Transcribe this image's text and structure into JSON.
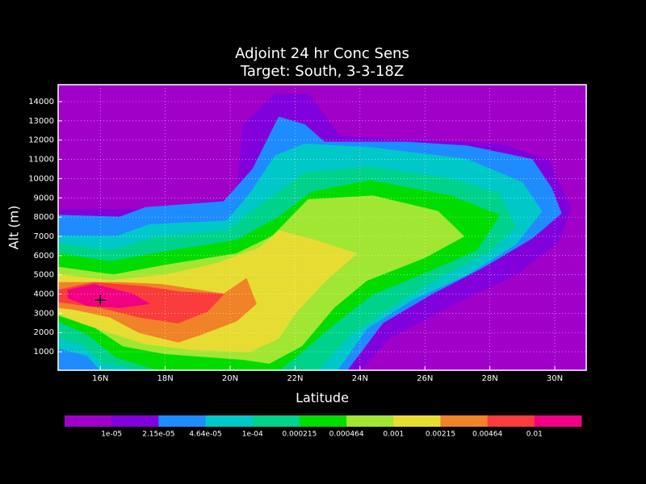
{
  "chart_data": {
    "type": "contourf",
    "title": "Adjoint 24 hr Conc Sens",
    "subtitle": "Target: South, 3-3-18Z",
    "x_label": "Latitude",
    "y_label": "Alt (m)",
    "xlim": [
      14.7,
      30.97
    ],
    "ylim": [
      40,
      14880
    ],
    "xticks": [
      {
        "value": 16,
        "label": "16N"
      },
      {
        "value": 18,
        "label": "18N"
      },
      {
        "value": 20,
        "label": "20N"
      },
      {
        "value": 22,
        "label": "22N"
      },
      {
        "value": 24,
        "label": "24N"
      },
      {
        "value": 26,
        "label": "26N"
      },
      {
        "value": 28,
        "label": "28N"
      },
      {
        "value": 30,
        "label": "30N"
      }
    ],
    "yticks": [
      1000,
      2000,
      3000,
      4000,
      5000,
      6000,
      7000,
      8000,
      9000,
      10000,
      11000,
      12000,
      13000,
      14000
    ],
    "grid": true,
    "colors": [
      "#a000c8",
      "#8200dc",
      "#1e8cff",
      "#00c8c8",
      "#00d28c",
      "#00dc00",
      "#a0e632",
      "#e6dc32",
      "#f08228",
      "#fa3c3c",
      "#f00082"
    ],
    "levels": [
      {
        "value": 1e-05,
        "label": "1e-05"
      },
      {
        "value": 2.15e-05,
        "label": "2.15e-05"
      },
      {
        "value": 4.64e-05,
        "label": "4.64e-05"
      },
      {
        "value": 0.0001,
        "label": "1e-04"
      },
      0.000215,
      0.000464,
      0.001,
      0.00215,
      0.00464,
      0.01
    ],
    "regions": [
      {
        "level": 1,
        "points": [
          [
            14.7,
            8400
          ],
          [
            17.4,
            8400
          ],
          [
            20.2,
            9000
          ],
          [
            20.4,
            12800
          ],
          [
            21.4,
            14400
          ],
          [
            22.4,
            14400
          ],
          [
            23.4,
            12200
          ],
          [
            25.4,
            12000
          ],
          [
            28.3,
            11800
          ],
          [
            29.8,
            11000
          ],
          [
            30.5,
            8400
          ],
          [
            30.1,
            6700
          ],
          [
            28.8,
            5000
          ],
          [
            26.8,
            3400
          ],
          [
            24.9,
            1700
          ],
          [
            24.0,
            40
          ],
          [
            14.7,
            40
          ]
        ]
      },
      {
        "level": 2,
        "points": [
          [
            14.7,
            8100
          ],
          [
            16.6,
            8000
          ],
          [
            17.4,
            8500
          ],
          [
            19.8,
            8800
          ],
          [
            20.7,
            10500
          ],
          [
            21.5,
            13200
          ],
          [
            22.3,
            12800
          ],
          [
            22.9,
            11900
          ],
          [
            25.4,
            11900
          ],
          [
            27.3,
            11700
          ],
          [
            29.3,
            11000
          ],
          [
            29.9,
            9500
          ],
          [
            30.2,
            8200
          ],
          [
            29.3,
            6900
          ],
          [
            27.8,
            5400
          ],
          [
            26.2,
            4000
          ],
          [
            24.7,
            2500
          ],
          [
            23.6,
            40
          ],
          [
            14.7,
            40
          ]
        ]
      },
      {
        "level": 3,
        "points": [
          [
            14.7,
            7000
          ],
          [
            16.5,
            7000
          ],
          [
            17.5,
            7600
          ],
          [
            19.9,
            7800
          ],
          [
            20.6,
            9200
          ],
          [
            21.4,
            11200
          ],
          [
            22.3,
            11800
          ],
          [
            24.4,
            11600
          ],
          [
            27.3,
            11000
          ],
          [
            29.0,
            9800
          ],
          [
            29.6,
            8300
          ],
          [
            28.8,
            6600
          ],
          [
            27.3,
            5000
          ],
          [
            25.6,
            3700
          ],
          [
            24.2,
            2200
          ],
          [
            23.3,
            40
          ],
          [
            16.0,
            40
          ],
          [
            15.6,
            800
          ],
          [
            14.7,
            1200
          ]
        ]
      },
      {
        "level": 4,
        "points": [
          [
            14.7,
            6600
          ],
          [
            16.4,
            6300
          ],
          [
            17.6,
            6900
          ],
          [
            19.9,
            7300
          ],
          [
            21.0,
            8700
          ],
          [
            22.3,
            10300
          ],
          [
            24.3,
            10600
          ],
          [
            26.8,
            10000
          ],
          [
            28.3,
            9200
          ],
          [
            28.8,
            7500
          ],
          [
            28.0,
            6200
          ],
          [
            26.4,
            4800
          ],
          [
            24.9,
            3300
          ],
          [
            23.6,
            1700
          ],
          [
            22.7,
            40
          ],
          [
            17.4,
            40
          ],
          [
            16.1,
            400
          ],
          [
            15.4,
            1400
          ],
          [
            14.7,
            1700
          ]
        ]
      },
      {
        "level": 5,
        "points": [
          [
            14.7,
            6100
          ],
          [
            16.3,
            5700
          ],
          [
            18.0,
            6200
          ],
          [
            20.2,
            6800
          ],
          [
            21.5,
            8000
          ],
          [
            22.5,
            9300
          ],
          [
            24.3,
            9900
          ],
          [
            26.8,
            9100
          ],
          [
            28.3,
            8100
          ],
          [
            27.6,
            6300
          ],
          [
            26.0,
            5100
          ],
          [
            24.4,
            4000
          ],
          [
            23.1,
            2300
          ],
          [
            22.0,
            700
          ],
          [
            21.5,
            40
          ],
          [
            17.8,
            40
          ],
          [
            16.5,
            700
          ],
          [
            15.6,
            1900
          ],
          [
            14.7,
            2600
          ]
        ]
      },
      {
        "level": 6,
        "points": [
          [
            14.7,
            5400
          ],
          [
            16.4,
            5000
          ],
          [
            18.0,
            5500
          ],
          [
            20.2,
            6100
          ],
          [
            21.3,
            7000
          ],
          [
            22.4,
            8900
          ],
          [
            24.4,
            9100
          ],
          [
            26.4,
            8300
          ],
          [
            27.2,
            7000
          ],
          [
            26.0,
            5900
          ],
          [
            24.2,
            4700
          ],
          [
            23.2,
            3300
          ],
          [
            22.2,
            1300
          ],
          [
            21.2,
            400
          ],
          [
            20.4,
            600
          ],
          [
            18.0,
            900
          ],
          [
            16.7,
            1300
          ],
          [
            15.8,
            2300
          ],
          [
            14.7,
            2900
          ]
        ]
      },
      {
        "level": 7,
        "points": [
          [
            14.7,
            5000
          ],
          [
            16.3,
            4700
          ],
          [
            18.0,
            5000
          ],
          [
            19.6,
            5600
          ],
          [
            20.9,
            6400
          ],
          [
            21.5,
            7300
          ],
          [
            22.6,
            6800
          ],
          [
            23.9,
            6100
          ],
          [
            23.0,
            4800
          ],
          [
            22.0,
            3000
          ],
          [
            21.5,
            1700
          ],
          [
            20.6,
            1000
          ],
          [
            18.9,
            1100
          ],
          [
            17.4,
            1400
          ],
          [
            16.3,
            2000
          ],
          [
            15.4,
            2500
          ],
          [
            14.7,
            3000
          ]
        ]
      },
      {
        "level": 8,
        "points": [
          [
            14.7,
            4600
          ],
          [
            16.6,
            4600
          ],
          [
            17.9,
            4500
          ],
          [
            19.8,
            4000
          ],
          [
            20.5,
            4800
          ],
          [
            20.8,
            3500
          ],
          [
            20.2,
            2600
          ],
          [
            19.1,
            1900
          ],
          [
            18.4,
            1500
          ],
          [
            17.2,
            2000
          ],
          [
            16.3,
            2800
          ],
          [
            15.2,
            3200
          ],
          [
            14.7,
            3300
          ]
        ]
      },
      {
        "level": 9,
        "points": [
          [
            14.7,
            4200
          ],
          [
            15.8,
            4600
          ],
          [
            17.3,
            4400
          ],
          [
            18.5,
            4100
          ],
          [
            19.8,
            4000
          ],
          [
            19.3,
            3100
          ],
          [
            18.4,
            2500
          ],
          [
            17.2,
            2800
          ],
          [
            16.0,
            3300
          ],
          [
            14.7,
            3600
          ]
        ]
      },
      {
        "level": 10,
        "points": [
          [
            15.0,
            4200
          ],
          [
            15.8,
            4500
          ],
          [
            17.0,
            4000
          ],
          [
            17.5,
            3500
          ],
          [
            16.6,
            3300
          ],
          [
            15.6,
            3400
          ],
          [
            15.0,
            3800
          ]
        ]
      }
    ],
    "marker": [
      16,
      3680
    ]
  }
}
